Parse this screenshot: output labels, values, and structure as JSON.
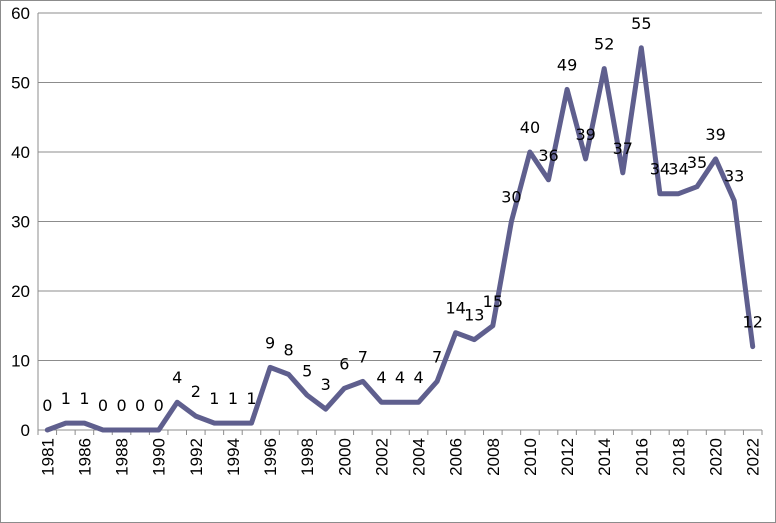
{
  "chart_data": {
    "type": "line",
    "title": "",
    "xlabel": "",
    "ylabel": "",
    "x": [
      "1981",
      "1985",
      "1986",
      "1987",
      "1988",
      "1989",
      "1990",
      "1991",
      "1992",
      "1993",
      "1994",
      "1995",
      "1996",
      "1997",
      "1998",
      "1999",
      "2000",
      "2001",
      "2002",
      "2003",
      "2004",
      "2005",
      "2006",
      "2007",
      "2008",
      "2009",
      "2010",
      "2011",
      "2012",
      "2013",
      "2014",
      "2015",
      "2016",
      "2017",
      "2018",
      "2019",
      "2020",
      "2021",
      "2022"
    ],
    "x_tick_labels": [
      "1981",
      "1986",
      "1988",
      "1990",
      "1992",
      "1994",
      "1996",
      "1998",
      "2000",
      "2002",
      "2004",
      "2006",
      "2008",
      "2010",
      "2012",
      "2014",
      "2016",
      "2018",
      "2020",
      "2022"
    ],
    "series": [
      {
        "values": [
          0,
          1,
          1,
          0,
          0,
          0,
          0,
          4,
          2,
          1,
          1,
          1,
          9,
          8,
          5,
          3,
          6,
          7,
          4,
          4,
          4,
          7,
          14,
          13,
          15,
          30,
          40,
          36,
          49,
          39,
          52,
          37,
          55,
          34,
          34,
          35,
          39,
          33,
          12
        ],
        "color": "#5f5f8e"
      }
    ],
    "ylim": [
      0,
      60
    ],
    "y_ticks": [
      0,
      10,
      20,
      30,
      40,
      50,
      60
    ],
    "grid": "horizontal",
    "legend": "none",
    "data_labels": true
  }
}
